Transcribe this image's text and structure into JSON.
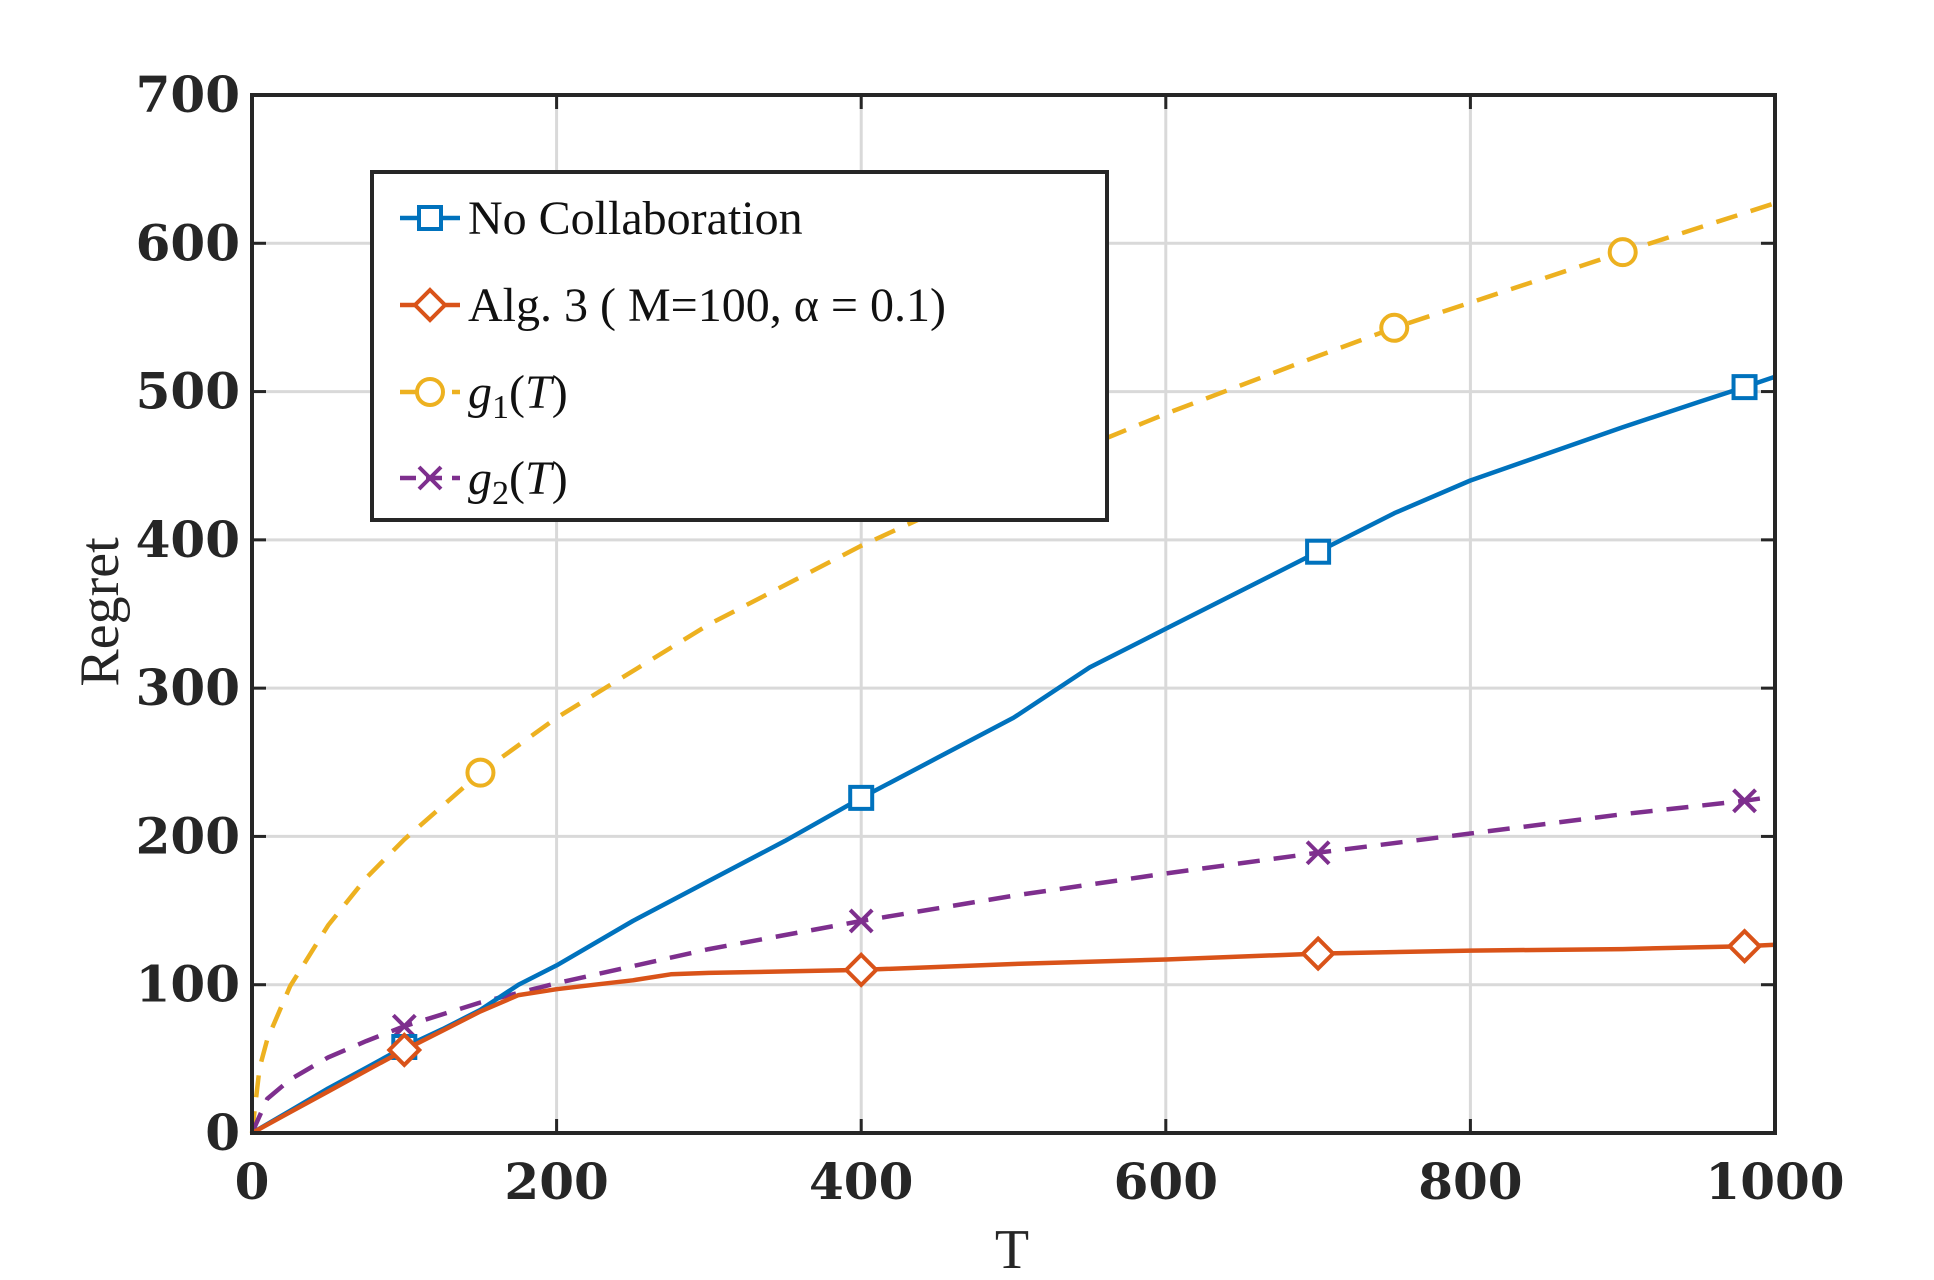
{
  "chart_data": {
    "type": "line",
    "xlabel": "T",
    "ylabel": "Regret",
    "xlim": [
      0,
      1000
    ],
    "ylim": [
      0,
      700
    ],
    "xticks": [
      "0",
      "200",
      "400",
      "600",
      "800",
      "1000"
    ],
    "yticks": [
      "0",
      "100",
      "200",
      "300",
      "400",
      "500",
      "600",
      "700"
    ],
    "grid": true,
    "legend_position": "top-left",
    "series": [
      {
        "name": "No Collaboration",
        "color": "#0072BD",
        "line": "solid",
        "marker": "square",
        "x": [
          0,
          25,
          50,
          75,
          100,
          125,
          150,
          175,
          200,
          250,
          300,
          350,
          400,
          450,
          500,
          550,
          600,
          650,
          700,
          750,
          800,
          850,
          900,
          950,
          980,
          1000
        ],
        "y": [
          0,
          15,
          30,
          44,
          58,
          70,
          83,
          100,
          113,
          143,
          170,
          197,
          226,
          253,
          280,
          314,
          340,
          366,
          392,
          418,
          440,
          458,
          476,
          493,
          503,
          510
        ],
        "marker_x": [
          100,
          400,
          700,
          980
        ]
      },
      {
        "name": "Alg. 3 ( M=100, α = 0.1)",
        "color": "#D95319",
        "line": "solid",
        "marker": "diamond",
        "x": [
          0,
          25,
          50,
          75,
          100,
          125,
          150,
          175,
          200,
          225,
          250,
          275,
          300,
          400,
          500,
          600,
          700,
          800,
          900,
          980,
          1000
        ],
        "y": [
          0,
          14,
          28,
          42,
          56,
          69,
          82,
          93,
          97,
          100,
          103,
          107,
          108,
          110,
          114,
          117,
          121,
          123,
          124,
          126,
          127
        ],
        "marker_x": [
          100,
          400,
          700,
          980
        ]
      },
      {
        "name": "g1(T)",
        "color": "#EDB120",
        "line": "dashed",
        "marker": "circle",
        "x": [
          0,
          5,
          10,
          25,
          50,
          75,
          100,
          150,
          200,
          300,
          400,
          500,
          600,
          700,
          750,
          800,
          900,
          1000
        ],
        "y": [
          0,
          44,
          63,
          99,
          140,
          172,
          198,
          243,
          280,
          343,
          396,
          443,
          485,
          524,
          543,
          560,
          594,
          627
        ],
        "marker_x": [
          150,
          750,
          900
        ]
      },
      {
        "name": "g2(T)",
        "color": "#7E2F8E",
        "line": "dashed",
        "marker": "x",
        "x": [
          0,
          10,
          25,
          50,
          75,
          100,
          150,
          200,
          300,
          400,
          500,
          600,
          700,
          800,
          900,
          980,
          1000
        ],
        "y": [
          0,
          23,
          36,
          51,
          62,
          72,
          88,
          101,
          124,
          143,
          160,
          175,
          189,
          202,
          215,
          224,
          227
        ],
        "marker_x": [
          100,
          400,
          700,
          980
        ]
      }
    ]
  }
}
